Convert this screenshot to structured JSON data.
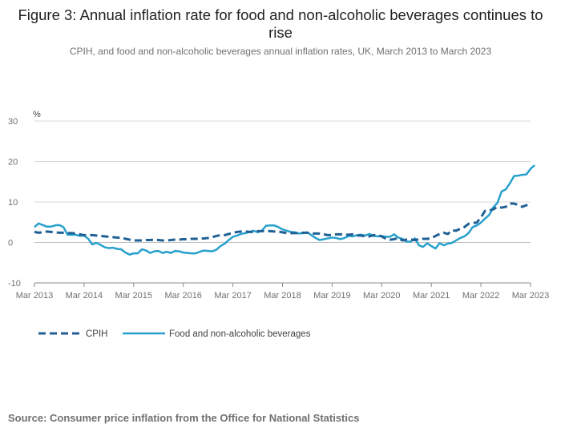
{
  "title": "Figure 3: Annual inflation rate for food and non-alcoholic beverages continues to rise",
  "subtitle": "CPIH, and food and non-alcoholic beverages annual inflation rates, UK, March 2013 to March 2023",
  "source": "Source: Consumer price inflation from the Office for National Statistics",
  "colors": {
    "cpih": "#206095",
    "food": "#27a0cc",
    "axis": "#d9d9d9",
    "text": "#707071"
  },
  "chart_data": {
    "type": "line",
    "title": "Figure 3: Annual inflation rate for food and non-alcoholic beverages continues to rise",
    "subtitle": "CPIH, and food and non-alcoholic beverages annual inflation rates, UK, March 2013 to March 2023",
    "ylabel": "%",
    "xlabel": "",
    "ylim": [
      -10,
      30
    ],
    "yticks": [
      -10,
      0,
      10,
      20,
      30
    ],
    "xticks": [
      "Mar 2013",
      "Mar 2014",
      "Mar 2015",
      "Mar 2016",
      "Mar 2017",
      "Mar 2018",
      "Mar 2019",
      "Mar 2020",
      "Mar 2021",
      "Mar 2022",
      "Mar 2023"
    ],
    "grid": "horizontal",
    "legend": "bottom-left",
    "x_start": "Mar 2013",
    "x_frequency": "monthly",
    "series": [
      {
        "name": "CPIH",
        "style": "dashed",
        "values": [
          2.6,
          2.4,
          2.5,
          2.7,
          2.6,
          2.5,
          2.4,
          2.4,
          2.3,
          2.3,
          2.2,
          2.0,
          1.8,
          1.8,
          1.8,
          1.7,
          1.6,
          1.5,
          1.4,
          1.3,
          1.2,
          1.2,
          0.9,
          0.7,
          0.5,
          0.5,
          0.5,
          0.6,
          0.6,
          0.7,
          0.6,
          0.5,
          0.5,
          0.6,
          0.7,
          0.7,
          0.8,
          0.8,
          0.9,
          0.9,
          0.9,
          1.0,
          1.1,
          1.3,
          1.6,
          1.8,
          1.8,
          2.1,
          2.3,
          2.6,
          2.7,
          2.7,
          2.6,
          2.6,
          2.8,
          2.8,
          2.8,
          2.8,
          2.7,
          2.7,
          2.5,
          2.3,
          2.3,
          2.3,
          2.3,
          2.4,
          2.4,
          2.2,
          2.2,
          2.2,
          2.0,
          1.8,
          1.8,
          2.0,
          2.0,
          1.9,
          1.9,
          2.0,
          1.7,
          1.7,
          1.5,
          1.5,
          1.8,
          1.8,
          1.5,
          0.9,
          0.7,
          0.8,
          1.1,
          0.5,
          0.7,
          0.7,
          0.6,
          0.8,
          0.9,
          0.9,
          1.0,
          1.6,
          2.1,
          2.4,
          2.1,
          3.0,
          2.9,
          3.4,
          3.8,
          4.6,
          4.8,
          4.9,
          6.2,
          7.8,
          7.9,
          8.2,
          8.8,
          8.6,
          8.8,
          9.6,
          9.6,
          9.3,
          8.8,
          9.2,
          9.2
        ]
      },
      {
        "name": "Food and non-alcoholic beverages",
        "style": "solid",
        "values": [
          3.8,
          4.7,
          4.3,
          3.9,
          3.9,
          4.2,
          4.3,
          3.8,
          1.9,
          1.9,
          1.9,
          1.6,
          1.7,
          0.9,
          -0.5,
          -0.1,
          -0.6,
          -1.2,
          -1.4,
          -1.3,
          -1.6,
          -1.7,
          -2.5,
          -3.0,
          -2.7,
          -2.7,
          -1.7,
          -2.0,
          -2.6,
          -2.2,
          -2.1,
          -2.6,
          -2.3,
          -2.6,
          -2.1,
          -2.2,
          -2.5,
          -2.6,
          -2.7,
          -2.7,
          -2.3,
          -2.0,
          -2.1,
          -2.2,
          -1.8,
          -0.9,
          -0.3,
          0.6,
          1.4,
          1.7,
          2.1,
          2.3,
          2.6,
          2.9,
          2.5,
          2.9,
          4.1,
          4.2,
          4.2,
          3.8,
          3.2,
          2.9,
          2.6,
          2.5,
          2.2,
          2.3,
          2.5,
          1.8,
          1.1,
          0.6,
          0.8,
          1.0,
          1.2,
          1.1,
          0.8,
          1.1,
          1.6,
          1.5,
          1.8,
          1.9,
          1.7,
          2.1,
          1.6,
          1.5,
          1.6,
          1.4,
          1.4,
          2.0,
          1.2,
          0.9,
          0.2,
          0.2,
          1.0,
          -0.7,
          -1.1,
          -0.2,
          -0.9,
          -1.5,
          -0.2,
          -0.7,
          -0.3,
          -0.1,
          0.5,
          1.1,
          1.5,
          2.3,
          3.8,
          4.2,
          4.9,
          5.9,
          6.8,
          8.7,
          9.8,
          12.6,
          13.1,
          14.6,
          16.4,
          16.5,
          16.7,
          16.8,
          18.2,
          19.1
        ]
      }
    ]
  }
}
